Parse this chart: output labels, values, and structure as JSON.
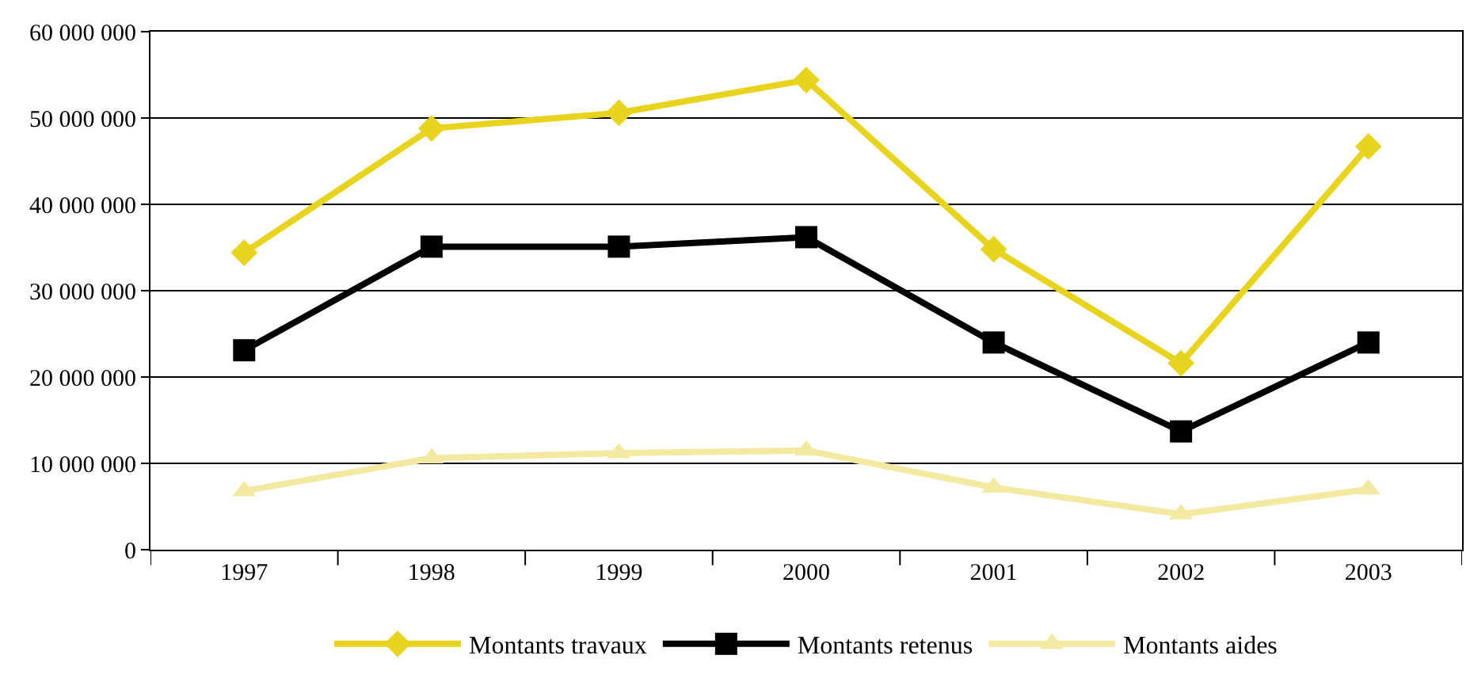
{
  "chart_data": {
    "type": "line",
    "categories": [
      "1997",
      "1998",
      "1999",
      "2000",
      "2001",
      "2002",
      "2003"
    ],
    "series": [
      {
        "name": "Montants travaux",
        "color": "#e8d41e",
        "marker": "diamond",
        "values": [
          34400000,
          48800000,
          50600000,
          54400000,
          34800000,
          21600000,
          46700000
        ]
      },
      {
        "name": "Montants retenus",
        "color": "#000000",
        "marker": "square",
        "values": [
          23100000,
          35100000,
          35100000,
          36200000,
          24000000,
          13700000,
          24000000
        ]
      },
      {
        "name": "Montants aides",
        "color": "#f3e9a0",
        "marker": "triangle",
        "values": [
          6800000,
          10600000,
          11200000,
          11500000,
          7200000,
          4100000,
          7000000
        ]
      }
    ],
    "ylim": [
      0,
      60000000
    ],
    "yticks": [
      0,
      {
        "value": 10000000,
        "label": "10 000 000"
      },
      {
        "value": 20000000,
        "label": "20 000 000"
      },
      {
        "value": 30000000,
        "label": "30 000 000"
      },
      {
        "value": 40000000,
        "label": "40 000 000"
      },
      {
        "value": 50000000,
        "label": "50 000 000"
      },
      {
        "value": 60000000,
        "label": "60 000 000"
      }
    ],
    "grid": "y",
    "legend": "bottom",
    "line_style": "solid"
  }
}
